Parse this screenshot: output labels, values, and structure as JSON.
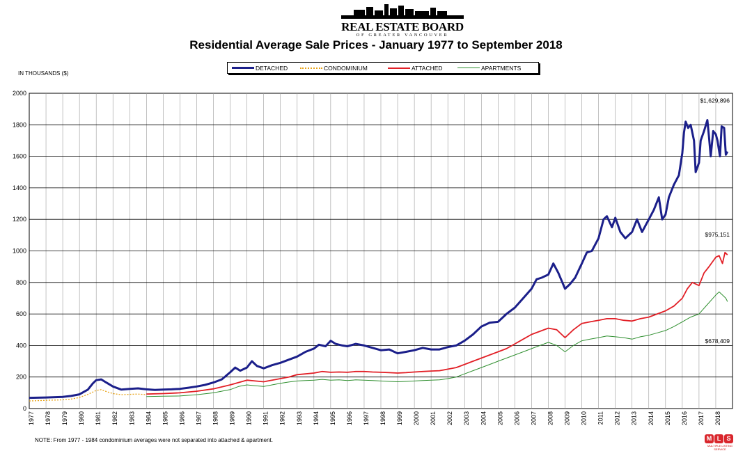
{
  "logo": {
    "main": "REAL ESTATE BOARD",
    "sub": "OF GREATER VANCOUVER"
  },
  "note": "NOTE:  From 1977 - 1984 condominium averages were not separated into attached & apartment.",
  "mls_logo": {
    "letters": [
      "M",
      "L",
      "S"
    ],
    "caption": "MULTIPLE LISTING SERVICE",
    "colors": [
      "#d9262c",
      "#d9262c",
      "#d9262c"
    ]
  },
  "chart_data": {
    "type": "line",
    "title": "Residential Average Sale Prices  -  January 1977 to September 2018",
    "ylabel": "IN THOUSANDS ($)",
    "xlabel": "",
    "ylim": [
      0,
      2000
    ],
    "yticks": [
      0,
      200,
      400,
      600,
      800,
      1000,
      1200,
      1400,
      1600,
      1800,
      2000
    ],
    "xticks": [
      "1977",
      "1978",
      "1979",
      "1980",
      "1981",
      "1982",
      "1983",
      "1984",
      "1985",
      "1986",
      "1987",
      "1988",
      "1989",
      "1990",
      "1991",
      "1992",
      "1993",
      "1994",
      "1995",
      "1996",
      "1997",
      "1998",
      "1999",
      "2000",
      "2001",
      "2002",
      "2003",
      "2004",
      "2005",
      "2006",
      "2007",
      "2008",
      "2009",
      "2010",
      "2011",
      "2012",
      "2013",
      "2014",
      "2015",
      "2016",
      "2017",
      "2018"
    ],
    "grid": true,
    "legend_position": "top-center",
    "annotations": [
      {
        "text": "$1,629,896",
        "series": "DETACHED"
      },
      {
        "text": "$975,151",
        "series": "ATTACHED"
      },
      {
        "text": "$678,409",
        "series": "APARTMENTS"
      }
    ],
    "series": [
      {
        "name": "DETACHED",
        "color": "#1b1f8a",
        "style": "solid-thick",
        "points": [
          [
            1977.0,
            68
          ],
          [
            1978.0,
            70
          ],
          [
            1979.0,
            74
          ],
          [
            1979.5,
            80
          ],
          [
            1980.0,
            90
          ],
          [
            1980.5,
            120
          ],
          [
            1980.8,
            160
          ],
          [
            1981.0,
            180
          ],
          [
            1981.3,
            185
          ],
          [
            1981.6,
            165
          ],
          [
            1982.0,
            140
          ],
          [
            1982.5,
            120
          ],
          [
            1983.0,
            125
          ],
          [
            1983.5,
            128
          ],
          [
            1984.0,
            122
          ],
          [
            1984.5,
            118
          ],
          [
            1985.0,
            120
          ],
          [
            1985.5,
            122
          ],
          [
            1986.0,
            125
          ],
          [
            1986.5,
            132
          ],
          [
            1987.0,
            140
          ],
          [
            1987.5,
            150
          ],
          [
            1988.0,
            165
          ],
          [
            1988.5,
            185
          ],
          [
            1989.0,
            230
          ],
          [
            1989.3,
            260
          ],
          [
            1989.6,
            240
          ],
          [
            1990.0,
            260
          ],
          [
            1990.3,
            300
          ],
          [
            1990.6,
            270
          ],
          [
            1991.0,
            255
          ],
          [
            1991.5,
            275
          ],
          [
            1992.0,
            290
          ],
          [
            1992.5,
            310
          ],
          [
            1993.0,
            330
          ],
          [
            1993.5,
            360
          ],
          [
            1994.0,
            380
          ],
          [
            1994.3,
            405
          ],
          [
            1994.7,
            395
          ],
          [
            1995.0,
            430
          ],
          [
            1995.3,
            410
          ],
          [
            1995.7,
            400
          ],
          [
            1996.0,
            395
          ],
          [
            1996.5,
            410
          ],
          [
            1997.0,
            400
          ],
          [
            1997.5,
            385
          ],
          [
            1998.0,
            370
          ],
          [
            1998.5,
            375
          ],
          [
            1999.0,
            350
          ],
          [
            1999.5,
            360
          ],
          [
            2000.0,
            370
          ],
          [
            2000.5,
            385
          ],
          [
            2001.0,
            375
          ],
          [
            2001.5,
            375
          ],
          [
            2002.0,
            390
          ],
          [
            2002.5,
            400
          ],
          [
            2003.0,
            430
          ],
          [
            2003.5,
            470
          ],
          [
            2004.0,
            520
          ],
          [
            2004.5,
            545
          ],
          [
            2005.0,
            550
          ],
          [
            2005.5,
            600
          ],
          [
            2006.0,
            640
          ],
          [
            2006.5,
            700
          ],
          [
            2007.0,
            760
          ],
          [
            2007.3,
            820
          ],
          [
            2007.6,
            830
          ],
          [
            2008.0,
            850
          ],
          [
            2008.3,
            920
          ],
          [
            2008.6,
            860
          ],
          [
            2009.0,
            760
          ],
          [
            2009.3,
            790
          ],
          [
            2009.6,
            830
          ],
          [
            2010.0,
            920
          ],
          [
            2010.3,
            990
          ],
          [
            2010.6,
            1000
          ],
          [
            2011.0,
            1080
          ],
          [
            2011.3,
            1200
          ],
          [
            2011.5,
            1220
          ],
          [
            2011.8,
            1150
          ],
          [
            2012.0,
            1210
          ],
          [
            2012.3,
            1120
          ],
          [
            2012.6,
            1080
          ],
          [
            2013.0,
            1120
          ],
          [
            2013.3,
            1200
          ],
          [
            2013.6,
            1120
          ],
          [
            2014.0,
            1200
          ],
          [
            2014.3,
            1260
          ],
          [
            2014.6,
            1340
          ],
          [
            2014.8,
            1200
          ],
          [
            2015.0,
            1230
          ],
          [
            2015.2,
            1340
          ],
          [
            2015.5,
            1420
          ],
          [
            2015.8,
            1480
          ],
          [
            2016.0,
            1620
          ],
          [
            2016.1,
            1750
          ],
          [
            2016.2,
            1820
          ],
          [
            2016.35,
            1780
          ],
          [
            2016.5,
            1800
          ],
          [
            2016.7,
            1700
          ],
          [
            2016.8,
            1500
          ],
          [
            2017.0,
            1560
          ],
          [
            2017.1,
            1700
          ],
          [
            2017.3,
            1760
          ],
          [
            2017.5,
            1830
          ],
          [
            2017.6,
            1720
          ],
          [
            2017.7,
            1600
          ],
          [
            2017.85,
            1760
          ],
          [
            2018.0,
            1740
          ],
          [
            2018.1,
            1700
          ],
          [
            2018.25,
            1600
          ],
          [
            2018.35,
            1790
          ],
          [
            2018.5,
            1780
          ],
          [
            2018.6,
            1610
          ],
          [
            2018.7,
            1630
          ]
        ]
      },
      {
        "name": "CONDOMINIUM",
        "color": "#e8a317",
        "style": "dotted",
        "points": [
          [
            1977.0,
            48
          ],
          [
            1978.0,
            52
          ],
          [
            1979.0,
            55
          ],
          [
            1979.5,
            60
          ],
          [
            1980.0,
            70
          ],
          [
            1980.5,
            90
          ],
          [
            1981.0,
            115
          ],
          [
            1981.3,
            120
          ],
          [
            1981.6,
            108
          ],
          [
            1982.0,
            95
          ],
          [
            1982.5,
            88
          ],
          [
            1983.0,
            90
          ],
          [
            1983.5,
            92
          ],
          [
            1984.0,
            88
          ]
        ]
      },
      {
        "name": "ATTACHED",
        "color": "#e21f26",
        "style": "solid",
        "points": [
          [
            1984.0,
            92
          ],
          [
            1985.0,
            95
          ],
          [
            1986.0,
            100
          ],
          [
            1987.0,
            110
          ],
          [
            1988.0,
            125
          ],
          [
            1989.0,
            150
          ],
          [
            1989.5,
            165
          ],
          [
            1990.0,
            180
          ],
          [
            1990.5,
            175
          ],
          [
            1991.0,
            170
          ],
          [
            1991.5,
            180
          ],
          [
            1992.0,
            190
          ],
          [
            1992.5,
            200
          ],
          [
            1993.0,
            215
          ],
          [
            1993.5,
            220
          ],
          [
            1994.0,
            225
          ],
          [
            1994.5,
            235
          ],
          [
            1995.0,
            230
          ],
          [
            1995.5,
            232
          ],
          [
            1996.0,
            230
          ],
          [
            1996.5,
            235
          ],
          [
            1997.0,
            235
          ],
          [
            1997.5,
            232
          ],
          [
            1998.0,
            230
          ],
          [
            1998.5,
            228
          ],
          [
            1999.0,
            225
          ],
          [
            1999.5,
            228
          ],
          [
            2000.0,
            232
          ],
          [
            2000.5,
            235
          ],
          [
            2001.0,
            238
          ],
          [
            2001.5,
            240
          ],
          [
            2002.0,
            250
          ],
          [
            2002.5,
            260
          ],
          [
            2003.0,
            280
          ],
          [
            2003.5,
            300
          ],
          [
            2004.0,
            320
          ],
          [
            2004.5,
            340
          ],
          [
            2005.0,
            360
          ],
          [
            2005.5,
            380
          ],
          [
            2006.0,
            410
          ],
          [
            2006.5,
            440
          ],
          [
            2007.0,
            470
          ],
          [
            2007.5,
            490
          ],
          [
            2008.0,
            510
          ],
          [
            2008.5,
            500
          ],
          [
            2009.0,
            450
          ],
          [
            2009.5,
            500
          ],
          [
            2010.0,
            540
          ],
          [
            2010.5,
            550
          ],
          [
            2011.0,
            560
          ],
          [
            2011.5,
            570
          ],
          [
            2012.0,
            570
          ],
          [
            2012.5,
            560
          ],
          [
            2013.0,
            555
          ],
          [
            2013.5,
            570
          ],
          [
            2014.0,
            580
          ],
          [
            2014.5,
            600
          ],
          [
            2015.0,
            620
          ],
          [
            2015.5,
            650
          ],
          [
            2016.0,
            700
          ],
          [
            2016.3,
            760
          ],
          [
            2016.6,
            800
          ],
          [
            2017.0,
            780
          ],
          [
            2017.3,
            860
          ],
          [
            2017.6,
            900
          ],
          [
            2018.0,
            960
          ],
          [
            2018.2,
            970
          ],
          [
            2018.4,
            920
          ],
          [
            2018.55,
            990
          ],
          [
            2018.7,
            975
          ]
        ]
      },
      {
        "name": "APARTMENTS",
        "color": "#2f8f2f",
        "style": "solid-thin",
        "points": [
          [
            1984.0,
            76
          ],
          [
            1985.0,
            78
          ],
          [
            1986.0,
            80
          ],
          [
            1987.0,
            88
          ],
          [
            1988.0,
            100
          ],
          [
            1989.0,
            120
          ],
          [
            1989.5,
            140
          ],
          [
            1990.0,
            150
          ],
          [
            1990.5,
            145
          ],
          [
            1991.0,
            140
          ],
          [
            1991.5,
            150
          ],
          [
            1992.0,
            160
          ],
          [
            1992.5,
            168
          ],
          [
            1993.0,
            175
          ],
          [
            1993.5,
            178
          ],
          [
            1994.0,
            180
          ],
          [
            1994.5,
            185
          ],
          [
            1995.0,
            180
          ],
          [
            1995.5,
            182
          ],
          [
            1996.0,
            178
          ],
          [
            1996.5,
            182
          ],
          [
            1997.0,
            180
          ],
          [
            1997.5,
            178
          ],
          [
            1998.0,
            175
          ],
          [
            1998.5,
            172
          ],
          [
            1999.0,
            170
          ],
          [
            1999.5,
            172
          ],
          [
            2000.0,
            175
          ],
          [
            2000.5,
            178
          ],
          [
            2001.0,
            180
          ],
          [
            2001.5,
            182
          ],
          [
            2002.0,
            190
          ],
          [
            2002.5,
            200
          ],
          [
            2003.0,
            220
          ],
          [
            2003.5,
            240
          ],
          [
            2004.0,
            260
          ],
          [
            2004.5,
            280
          ],
          [
            2005.0,
            300
          ],
          [
            2005.5,
            320
          ],
          [
            2006.0,
            340
          ],
          [
            2006.5,
            360
          ],
          [
            2007.0,
            380
          ],
          [
            2007.5,
            400
          ],
          [
            2008.0,
            420
          ],
          [
            2008.5,
            400
          ],
          [
            2009.0,
            360
          ],
          [
            2009.5,
            400
          ],
          [
            2010.0,
            430
          ],
          [
            2010.5,
            440
          ],
          [
            2011.0,
            450
          ],
          [
            2011.5,
            460
          ],
          [
            2012.0,
            455
          ],
          [
            2012.5,
            450
          ],
          [
            2013.0,
            440
          ],
          [
            2013.5,
            455
          ],
          [
            2014.0,
            465
          ],
          [
            2014.5,
            480
          ],
          [
            2015.0,
            495
          ],
          [
            2015.5,
            520
          ],
          [
            2016.0,
            550
          ],
          [
            2016.5,
            580
          ],
          [
            2017.0,
            600
          ],
          [
            2017.5,
            660
          ],
          [
            2018.0,
            720
          ],
          [
            2018.2,
            740
          ],
          [
            2018.4,
            720
          ],
          [
            2018.6,
            700
          ],
          [
            2018.7,
            678
          ]
        ]
      }
    ]
  }
}
